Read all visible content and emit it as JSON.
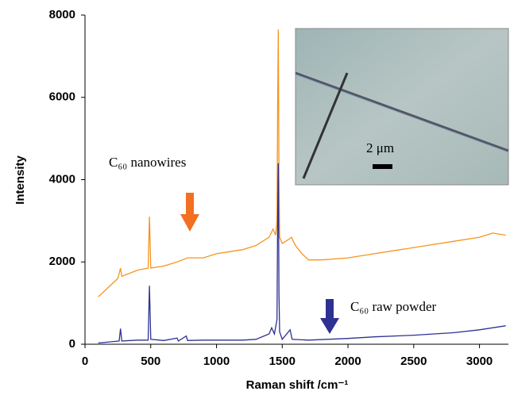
{
  "chart_data": {
    "type": "line",
    "xlabel": "Raman shift /cm⁻¹",
    "ylabel": "Intensity",
    "xlim": [
      0,
      3220
    ],
    "ylim": [
      0,
      8000
    ],
    "xticks": [
      0,
      500,
      1000,
      1500,
      2000,
      2500,
      3000
    ],
    "yticks": [
      0,
      2000,
      4000,
      6000,
      8000
    ],
    "inset_label": "2 μm",
    "series": [
      {
        "name": "C₆₀ nanowires",
        "color": "#f7941d",
        "x": [
          100,
          150,
          250,
          270,
          280,
          400,
          480,
          490,
          500,
          600,
          700,
          780,
          900,
          1000,
          1100,
          1200,
          1300,
          1400,
          1430,
          1450,
          1460,
          1465,
          1470,
          1475,
          1480,
          1500,
          1550,
          1570,
          1600,
          1650,
          1700,
          1800,
          2000,
          2200,
          2400,
          2600,
          2800,
          3000,
          3100,
          3200
        ],
        "values": [
          1150,
          1300,
          1600,
          1850,
          1650,
          1800,
          1850,
          3100,
          1850,
          1900,
          2000,
          2100,
          2100,
          2200,
          2250,
          2300,
          2400,
          2600,
          2800,
          2650,
          3000,
          5800,
          7650,
          4000,
          2600,
          2450,
          2550,
          2600,
          2400,
          2200,
          2050,
          2050,
          2100,
          2200,
          2300,
          2400,
          2500,
          2600,
          2700,
          2650
        ]
      },
      {
        "name": "C₆₀ raw powder",
        "color": "#2e3192",
        "x": [
          100,
          200,
          260,
          270,
          280,
          400,
          480,
          490,
          500,
          600,
          700,
          710,
          770,
          780,
          900,
          1000,
          1200,
          1300,
          1400,
          1420,
          1440,
          1460,
          1465,
          1470,
          1475,
          1480,
          1500,
          1560,
          1575,
          1700,
          2000,
          2200,
          2500,
          2800,
          3000,
          3200
        ],
        "values": [
          30,
          60,
          80,
          380,
          80,
          100,
          100,
          1420,
          120,
          90,
          150,
          80,
          200,
          90,
          100,
          100,
          100,
          120,
          250,
          400,
          250,
          600,
          3000,
          4400,
          1200,
          300,
          120,
          350,
          120,
          100,
          140,
          180,
          220,
          280,
          350,
          450
        ]
      }
    ]
  }
}
